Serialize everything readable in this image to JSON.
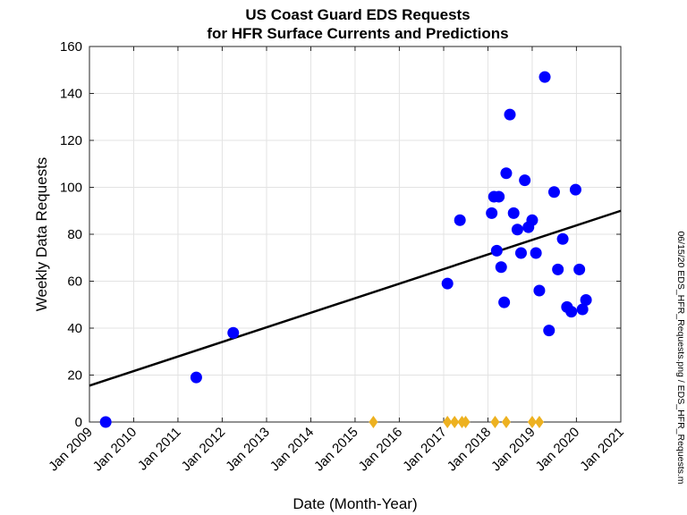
{
  "chart_data": {
    "type": "scatter",
    "title": [
      "US Coast Guard EDS Requests",
      "for HFR Surface Currents and Predictions"
    ],
    "xlabel": "Date (Month-Year)",
    "ylabel": "Weekly Data Requests",
    "side_note": "06/15/20  EDS_HFR_Requests.png / EDS_HFR_Requests.m",
    "xlim": [
      "2009-01-01",
      "2021-01-01"
    ],
    "ylim": [
      0,
      160
    ],
    "yticks": [
      0,
      20,
      40,
      60,
      80,
      100,
      120,
      140,
      160
    ],
    "xticks": [
      {
        "date": "2009-01-01",
        "label": "Jan 2009"
      },
      {
        "date": "2010-01-01",
        "label": "Jan 2010"
      },
      {
        "date": "2011-01-01",
        "label": "Jan 2011"
      },
      {
        "date": "2012-01-01",
        "label": "Jan 2012"
      },
      {
        "date": "2013-01-01",
        "label": "Jan 2013"
      },
      {
        "date": "2014-01-01",
        "label": "Jan 2014"
      },
      {
        "date": "2015-01-01",
        "label": "Jan 2015"
      },
      {
        "date": "2016-01-01",
        "label": "Jan 2016"
      },
      {
        "date": "2017-01-01",
        "label": "Jan 2017"
      },
      {
        "date": "2018-01-01",
        "label": "Jan 2018"
      },
      {
        "date": "2019-01-01",
        "label": "Jan 2019"
      },
      {
        "date": "2020-01-01",
        "label": "Jan 2020"
      },
      {
        "date": "2021-01-01",
        "label": "Jan 2021"
      }
    ],
    "grid": true,
    "colors": {
      "points": "#0000ff",
      "markers": "#edb120",
      "trend": "#000000",
      "grid": "#e3e3e3"
    },
    "series": [
      {
        "marker": "circle",
        "points": [
          {
            "x": "2009-05-15",
            "y": 0
          },
          {
            "x": "2011-06-01",
            "y": 19
          },
          {
            "x": "2012-04-01",
            "y": 38
          },
          {
            "x": "2017-02-01",
            "y": 59
          },
          {
            "x": "2017-05-15",
            "y": 86
          },
          {
            "x": "2018-02-01",
            "y": 89
          },
          {
            "x": "2018-02-20",
            "y": 96
          },
          {
            "x": "2018-03-15",
            "y": 73
          },
          {
            "x": "2018-04-01",
            "y": 96
          },
          {
            "x": "2018-04-20",
            "y": 66
          },
          {
            "x": "2018-05-15",
            "y": 51
          },
          {
            "x": "2018-06-01",
            "y": 106
          },
          {
            "x": "2018-07-01",
            "y": 131
          },
          {
            "x": "2018-08-01",
            "y": 89
          },
          {
            "x": "2018-09-01",
            "y": 82
          },
          {
            "x": "2018-10-01",
            "y": 72
          },
          {
            "x": "2018-11-01",
            "y": 103
          },
          {
            "x": "2018-12-01",
            "y": 83
          },
          {
            "x": "2019-01-01",
            "y": 86
          },
          {
            "x": "2019-02-01",
            "y": 72
          },
          {
            "x": "2019-03-01",
            "y": 56
          },
          {
            "x": "2019-04-15",
            "y": 147
          },
          {
            "x": "2019-05-20",
            "y": 39
          },
          {
            "x": "2019-07-01",
            "y": 98
          },
          {
            "x": "2019-08-01",
            "y": 65
          },
          {
            "x": "2019-09-10",
            "y": 78
          },
          {
            "x": "2019-10-15",
            "y": 49
          },
          {
            "x": "2019-11-20",
            "y": 47
          },
          {
            "x": "2019-12-25",
            "y": 99
          },
          {
            "x": "2020-01-25",
            "y": 65
          },
          {
            "x": "2020-02-20",
            "y": 48
          },
          {
            "x": "2020-03-20",
            "y": 52
          }
        ]
      },
      {
        "marker": "diamond",
        "points": [
          {
            "x": "2015-06-01",
            "y": 0
          },
          {
            "x": "2017-02-01",
            "y": 0
          },
          {
            "x": "2017-04-01",
            "y": 0
          },
          {
            "x": "2017-06-01",
            "y": 0
          },
          {
            "x": "2017-07-01",
            "y": 0
          },
          {
            "x": "2018-03-01",
            "y": 0
          },
          {
            "x": "2018-06-01",
            "y": 0
          },
          {
            "x": "2019-01-01",
            "y": 0
          },
          {
            "x": "2019-03-01",
            "y": 0
          }
        ]
      }
    ],
    "trendline": [
      {
        "x": "2009-01-01",
        "y": 15.5
      },
      {
        "x": "2021-01-01",
        "y": 90
      }
    ]
  }
}
